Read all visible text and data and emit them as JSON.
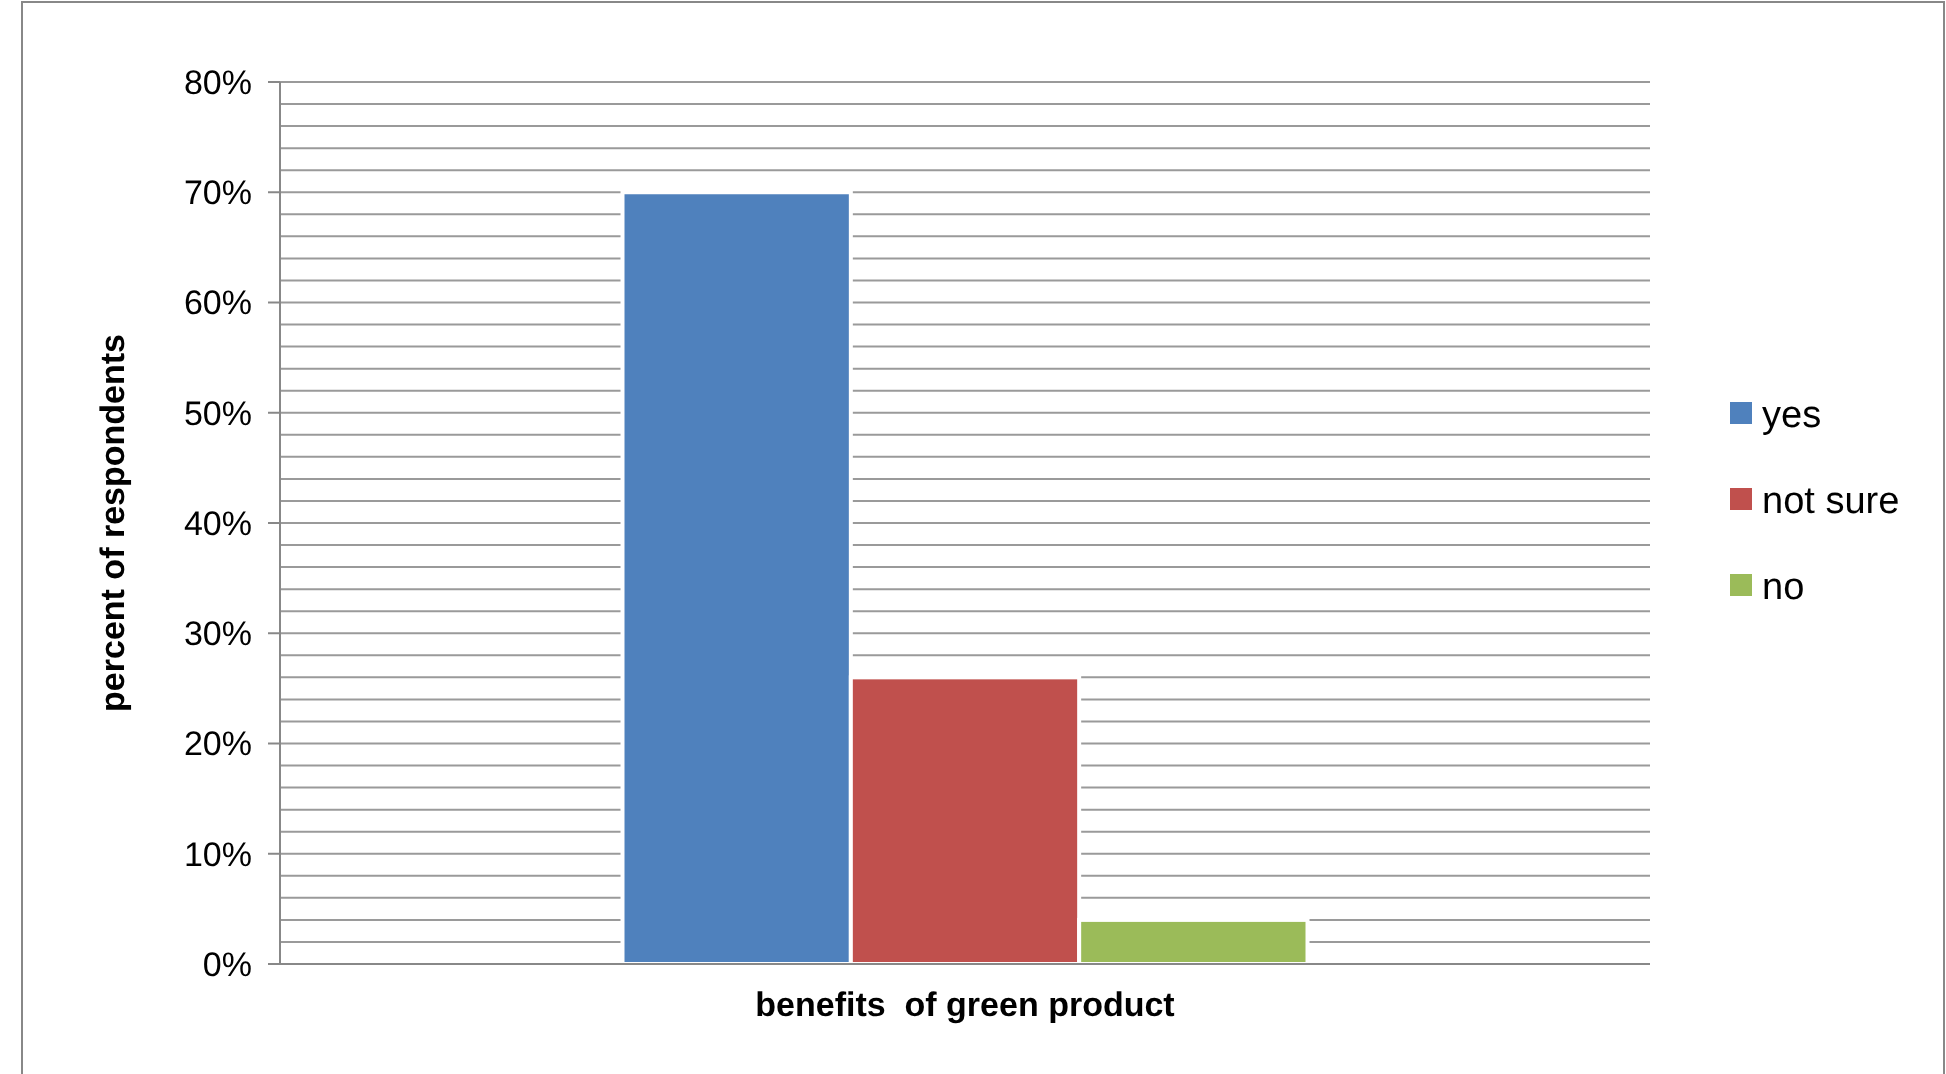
{
  "chart_data": {
    "type": "bar",
    "xlabel": "benefits  of green product",
    "ylabel": "percent of respondents",
    "categories": [
      null
    ],
    "series": [
      {
        "name": "yes",
        "color": "#4f81bd",
        "values": [
          70
        ]
      },
      {
        "name": "not sure",
        "color": "#c0504d",
        "values": [
          26
        ]
      },
      {
        "name": "no",
        "color": "#9bbb59",
        "values": [
          4
        ]
      }
    ],
    "ylim": [
      0,
      80
    ],
    "yticks": [
      {
        "value": 0,
        "label": "0%"
      },
      {
        "value": 2,
        "label": null
      },
      {
        "value": 4,
        "label": null
      },
      {
        "value": 6,
        "label": null
      },
      {
        "value": 8,
        "label": null
      },
      {
        "value": 10,
        "label": "10%"
      },
      {
        "value": 12,
        "label": null
      },
      {
        "value": 14,
        "label": null
      },
      {
        "value": 16,
        "label": null
      },
      {
        "value": 18,
        "label": null
      },
      {
        "value": 20,
        "label": "20%"
      },
      {
        "value": 22,
        "label": null
      },
      {
        "value": 24,
        "label": null
      },
      {
        "value": 26,
        "label": null
      },
      {
        "value": 28,
        "label": null
      },
      {
        "value": 30,
        "label": "30%"
      },
      {
        "value": 32,
        "label": null
      },
      {
        "value": 34,
        "label": null
      },
      {
        "value": 36,
        "label": null
      },
      {
        "value": 38,
        "label": null
      },
      {
        "value": 40,
        "label": "40%"
      },
      {
        "value": 42,
        "label": null
      },
      {
        "value": 44,
        "label": null
      },
      {
        "value": 46,
        "label": null
      },
      {
        "value": 48,
        "label": null
      },
      {
        "value": 50,
        "label": "50%"
      },
      {
        "value": 52,
        "label": null
      },
      {
        "value": 54,
        "label": null
      },
      {
        "value": 56,
        "label": null
      },
      {
        "value": 58,
        "label": null
      },
      {
        "value": 60,
        "label": "60%"
      },
      {
        "value": 62,
        "label": null
      },
      {
        "value": 64,
        "label": null
      },
      {
        "value": 66,
        "label": null
      },
      {
        "value": 68,
        "label": null
      },
      {
        "value": 70,
        "label": "70%"
      },
      {
        "value": 72,
        "label": null
      },
      {
        "value": 74,
        "label": null
      },
      {
        "value": 76,
        "label": null
      },
      {
        "value": 78,
        "label": null
      },
      {
        "value": 80,
        "label": "80%"
      }
    ],
    "grid": true,
    "legend": "right"
  }
}
